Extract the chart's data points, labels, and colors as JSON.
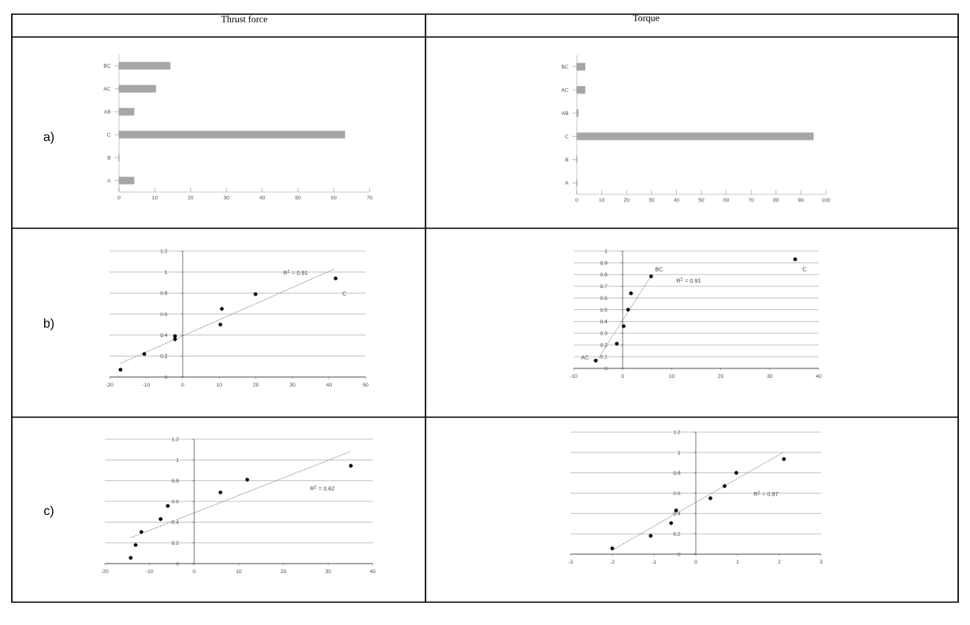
{
  "chart_data": [
    {
      "type": "bar",
      "orientation": "horizontal",
      "title": "Thrust force",
      "annotations": [
        "a)"
      ],
      "categories": [
        "BC",
        "AC",
        "AB",
        "C",
        "B",
        "A"
      ],
      "values": [
        14.3,
        10.3,
        4.2,
        63.1,
        0,
        4.2
      ],
      "color": "#a6a6a6",
      "xlim": [
        0,
        70
      ],
      "xticks": [
        0,
        10,
        20,
        30,
        40,
        50,
        60,
        70
      ]
    },
    {
      "type": "bar",
      "orientation": "horizontal",
      "title": "Torque",
      "categories": [
        "BC",
        "AC",
        "AB",
        "C",
        "B",
        "A"
      ],
      "values": [
        3.3,
        3.3,
        0.6,
        95,
        0,
        0
      ],
      "color": "#a6a6a6",
      "xlim": [
        0,
        100
      ],
      "xticks": [
        0,
        10,
        20,
        30,
        40,
        50,
        60,
        70,
        80,
        90,
        100
      ]
    },
    {
      "type": "scatter",
      "annotations": [
        "b)",
        "R$^{2}$ = 0.91",
        "C"
      ],
      "xlim": [
        -20,
        50
      ],
      "ylim": [
        0,
        1.2
      ],
      "xticks": [
        -20,
        -10,
        0,
        10,
        20,
        30,
        40,
        50
      ],
      "yticks": [
        0,
        0.2,
        0.4,
        0.6,
        0.8,
        1,
        1.2
      ],
      "grid": "y",
      "series": [
        {
          "type": "scatter",
          "marker": "circle",
          "color": "#000000",
          "x": [
            -17,
            -10.5,
            -2.1,
            -2.1,
            10.3,
            10.7,
            19.9,
            41.8
          ],
          "values": [
            0.07,
            0.22,
            0.36,
            0.39,
            0.5,
            0.65,
            0.79,
            0.94
          ]
        },
        {
          "type": "line",
          "marker": "none",
          "line_style": "dotted",
          "color": "#808080",
          "x": [
            -17,
            41.5
          ],
          "values": [
            0.13,
            1.03
          ]
        }
      ]
    },
    {
      "type": "scatter",
      "annotations": [
        "AC",
        "BC",
        "R$^{2}$ = 0.91",
        "C"
      ],
      "xlim": [
        -10,
        40
      ],
      "ylim": [
        0,
        1
      ],
      "xticks": [
        -10,
        0,
        10,
        20,
        30,
        40
      ],
      "yticks": [
        0,
        0.1,
        0.2,
        0.3,
        0.4,
        0.5,
        0.6,
        0.7,
        0.8,
        0.9,
        1
      ],
      "grid": "y",
      "series": [
        {
          "type": "scatter",
          "marker": "circle",
          "color": "#000000",
          "x": [
            -5.5,
            -1.2,
            0.2,
            1.1,
            1.7,
            5.8,
            35.2
          ],
          "values": [
            0.067,
            0.21,
            0.36,
            0.5,
            0.64,
            0.785,
            0.93
          ]
        },
        {
          "type": "line",
          "marker": "none",
          "line_style": "dotted",
          "color": "#808080",
          "x": [
            -5.5,
            5.8
          ],
          "values": [
            0.05,
            0.79
          ]
        }
      ]
    },
    {
      "type": "scatter",
      "annotations": [
        "c)",
        "R$^{2}$ = 0.62"
      ],
      "xlim": [
        -20,
        40
      ],
      "ylim": [
        0,
        1.2
      ],
      "xticks": [
        -20,
        -10,
        0,
        10,
        20,
        30,
        40
      ],
      "yticks": [
        0,
        0.2,
        0.4,
        0.6,
        0.8,
        1,
        1.2
      ],
      "grid": "y",
      "series": [
        {
          "type": "scatter",
          "marker": "circle",
          "color": "#000000",
          "x": [
            -14.2,
            -13.1,
            -11.8,
            -7.5,
            -5.9,
            5.9,
            11.9,
            35.1
          ],
          "values": [
            0.056,
            0.18,
            0.305,
            0.43,
            0.557,
            0.687,
            0.81,
            0.944
          ]
        },
        {
          "type": "line",
          "marker": "none",
          "line_style": "dotted",
          "color": "#808080",
          "x": [
            -14.2,
            35
          ],
          "values": [
            0.25,
            1.08
          ]
        }
      ]
    },
    {
      "type": "scatter",
      "annotations": [
        "R$^{2}$ = 0.97"
      ],
      "xlim": [
        -3,
        3
      ],
      "ylim": [
        0,
        1.2
      ],
      "xticks": [
        -3,
        -2,
        -1,
        0,
        1,
        2,
        3
      ],
      "yticks": [
        0,
        0.2,
        0.4,
        0.6,
        0.8,
        1,
        1.2
      ],
      "grid": "y",
      "series": [
        {
          "type": "scatter",
          "marker": "circle",
          "color": "#000000",
          "x": [
            -2,
            -1.08,
            -0.59,
            -0.47,
            0.35,
            0.69,
            0.97,
            2.11
          ],
          "values": [
            0.057,
            0.18,
            0.305,
            0.43,
            0.55,
            0.67,
            0.8,
            0.935
          ]
        },
        {
          "type": "line",
          "marker": "none",
          "line_style": "dotted",
          "color": "#808080",
          "x": [
            -2,
            2.09
          ],
          "values": [
            0.04,
            1.0
          ]
        }
      ]
    }
  ]
}
